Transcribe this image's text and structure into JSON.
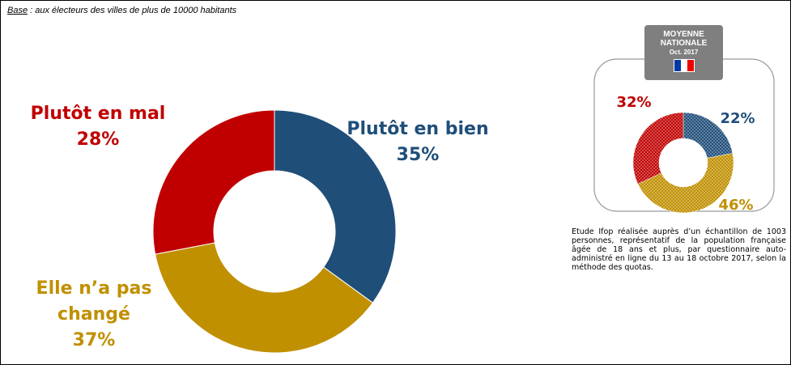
{
  "subtitle_label": "Base",
  "subtitle": " : aux électeurs des villes de plus de 10000 habitants",
  "chart_data": [
    {
      "type": "donut",
      "categories": [
        "Plutôt en bien",
        "Elle n’a pas changé",
        "Plutôt en mal"
      ],
      "values": [
        35,
        37,
        28
      ],
      "value_labels": [
        "35%",
        "37%",
        "28%"
      ],
      "colors": [
        "#1f4e79",
        "#c09000",
        "#c00000"
      ]
    },
    {
      "type": "donut",
      "title": "MOYENNE NATIONALE",
      "subtitle": "Oct. 2017",
      "values": [
        22,
        46,
        32
      ],
      "value_labels": [
        "22%",
        "46%",
        "32%"
      ],
      "colors": [
        "#1f4e79",
        "#c09000",
        "#c00000"
      ],
      "texture": "dots"
    }
  ],
  "note": "Etude Ifop réalisée auprès d’un échantillon de 1003 personnes, représentatif de la population française âgée de 18 ans et plus, par questionnaire auto-administré en ligne du 13 au 18 octobre 2017, selon la méthode des quotas."
}
